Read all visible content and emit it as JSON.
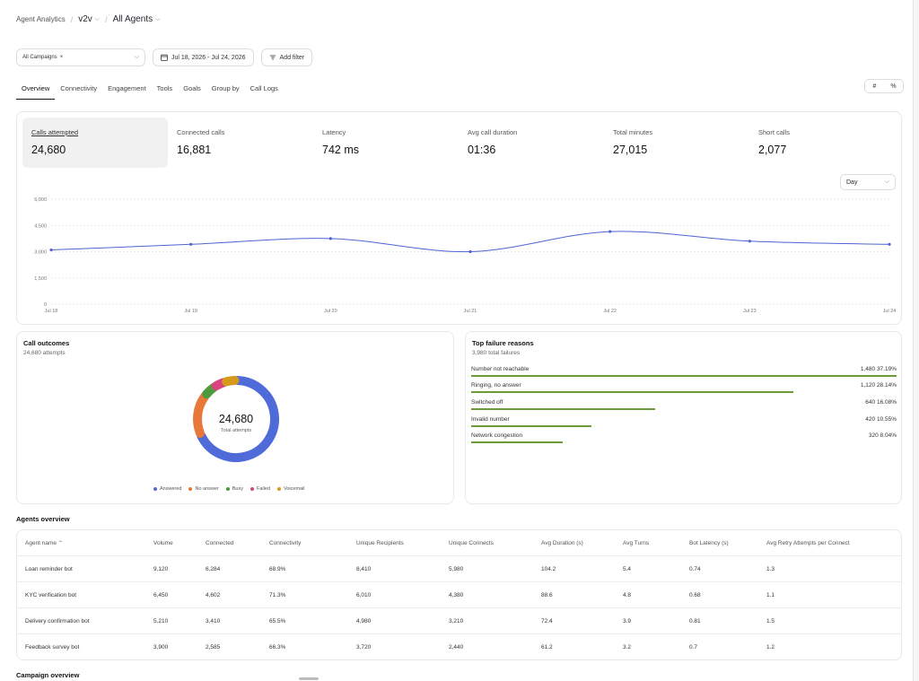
{
  "breadcrumb": {
    "root": "Agent Analytics",
    "workspace": "v2v",
    "agents": "All Agents"
  },
  "filters": {
    "campaign_chip": "All Campaigns",
    "date_range": "Jul 18, 2026 - Jul 24, 2026",
    "add_filter": "Add filter"
  },
  "tabs": [
    "Overview",
    "Connectivity",
    "Engagement",
    "Tools",
    "Goals",
    "Group by",
    "Call Logs"
  ],
  "toggle": {
    "count": "#",
    "percent": "%"
  },
  "metrics": [
    {
      "label": "Calls attempted",
      "value": "24,680"
    },
    {
      "label": "Connected calls",
      "value": "16,881"
    },
    {
      "label": "Latency",
      "value": "742 ms"
    },
    {
      "label": "Avg call duration",
      "value": "01:36"
    },
    {
      "label": "Total minutes",
      "value": "27,015"
    },
    {
      "label": "Short calls",
      "value": "2,077"
    }
  ],
  "granularity": "Day",
  "chart_data": {
    "type": "line",
    "x": [
      "Jul 18",
      "Jul 19",
      "Jul 20",
      "Jul 21",
      "Jul 22",
      "Jul 23",
      "Jul 24"
    ],
    "series": [
      {
        "values": [
          3100,
          3420,
          3750,
          3000,
          4150,
          3600,
          3420
        ],
        "color": "#4f63d2"
      }
    ],
    "y_ticks": [
      "6,000",
      "4,500",
      "3,000",
      "1,500",
      "0"
    ],
    "ylim": [
      0,
      6000
    ],
    "grid": true
  },
  "outcomes": {
    "title": "Call outcomes",
    "subtitle": "24,680 attempts",
    "center_value": "24,680",
    "center_label": "Total attempts",
    "segments": [
      {
        "name": "Answered",
        "value": 68.4,
        "color": "#4f6bd9"
      },
      {
        "name": "No answer",
        "value": 17.2,
        "color": "#e8783a"
      },
      {
        "name": "Busy",
        "value": 5.2,
        "color": "#4f9a3d"
      },
      {
        "name": "Failed",
        "value": 4.6,
        "color": "#d9437f"
      },
      {
        "name": "Voicemail",
        "value": 4.6,
        "color": "#d69a1a"
      }
    ]
  },
  "failures": {
    "title": "Top failure reasons",
    "subtitle": "3,980 total failures",
    "rows": [
      {
        "label": "Number not reachable",
        "stat": "1,480 37.19%",
        "pct": 37.19
      },
      {
        "label": "Ringing, no answer",
        "stat": "1,120 28.14%",
        "pct": 28.14
      },
      {
        "label": "Switched off",
        "stat": "640 16.08%",
        "pct": 16.08
      },
      {
        "label": "Invalid number",
        "stat": "420 10.55%",
        "pct": 10.55
      },
      {
        "label": "Network congestion",
        "stat": "320 8.04%",
        "pct": 8.04
      }
    ]
  },
  "agents": {
    "title": "Agents overview",
    "columns": [
      "Agent name",
      "Volume",
      "Connected",
      "Connectivity",
      "Unique Recipients",
      "Unique Connects",
      "Avg Duration (s)",
      "Avg Turns",
      "Bot Latency (s)",
      "Avg Retry Attempts per Connect"
    ],
    "rows": [
      [
        "Loan reminder bot",
        "9,120",
        "6,284",
        "68.9%",
        "8,410",
        "5,980",
        "104.2",
        "5.4",
        "0.74",
        "1.3"
      ],
      [
        "KYC verification bot",
        "6,450",
        "4,602",
        "71.3%",
        "6,010",
        "4,380",
        "88.6",
        "4.8",
        "0.68",
        "1.1"
      ],
      [
        "Delivery confirmation bot",
        "5,210",
        "3,410",
        "65.5%",
        "4,980",
        "3,210",
        "72.4",
        "3.9",
        "0.81",
        "1.5"
      ],
      [
        "Feedback survey bot",
        "3,900",
        "2,585",
        "66.3%",
        "3,720",
        "2,440",
        "61.2",
        "3.2",
        "0.7",
        "1.2"
      ]
    ]
  },
  "campaign_title": "Campaign overview"
}
